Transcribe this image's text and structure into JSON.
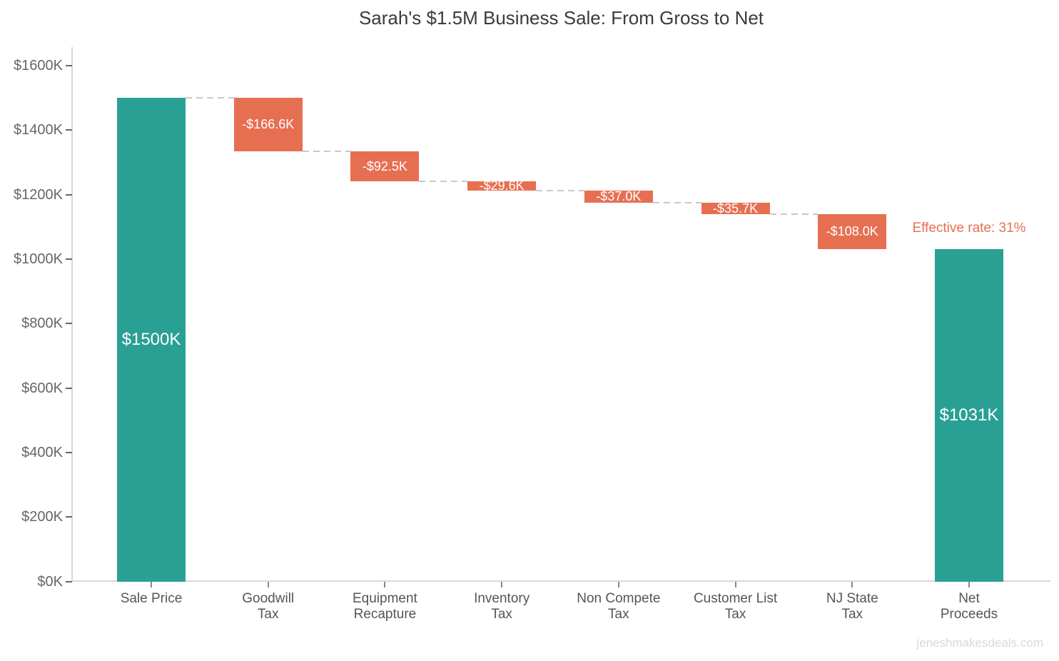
{
  "chart_data": {
    "type": "waterfall",
    "title": "Sarah's $1.5M Business Sale: From Gross to Net",
    "categories": [
      "Sale Price",
      "Goodwill Tax",
      "Equipment Recapture",
      "Inventory Tax",
      "Non Compete Tax",
      "Customer List Tax",
      "NJ State Tax",
      "Net Proceeds"
    ],
    "categories_lines": [
      [
        "Sale Price"
      ],
      [
        "Goodwill",
        "Tax"
      ],
      [
        "Equipment",
        "Recapture"
      ],
      [
        "Inventory",
        "Tax"
      ],
      [
        "Non Compete",
        "Tax"
      ],
      [
        "Customer List",
        "Tax"
      ],
      [
        "NJ State",
        "Tax"
      ],
      [
        "Net",
        "Proceeds"
      ]
    ],
    "values_k": [
      1500,
      -166.6,
      -92.5,
      -29.6,
      -37.0,
      -35.7,
      -108.0,
      1030.6
    ],
    "measures": [
      "absolute",
      "relative",
      "relative",
      "relative",
      "relative",
      "relative",
      "relative",
      "total"
    ],
    "bar_labels": [
      "$1500K",
      "-$166.6K",
      "-$92.5K",
      "-$29.6K",
      "-$37.0K",
      "-$35.7K",
      "-$108.0K",
      "$1031K"
    ],
    "y_axis": {
      "ticks": [
        "$1600K",
        "$1400K",
        "$1200K",
        "$1000K",
        "$800K",
        "$600K",
        "$400K",
        "$200K",
        "$0K"
      ],
      "min_k": 0,
      "max_k": 1600,
      "tick_step_k": 200
    },
    "grid": "off",
    "legend": "none",
    "annotation": "Effective rate: 31%",
    "watermark": "jeneshmakesdeals.com",
    "colors": {
      "positive_total_bar": "#2aa095",
      "negative_bar": "#e76f51",
      "connector": "#c9c9c9",
      "annotation_text": "#e76f51",
      "title_text": "#3b3b3b",
      "axis_line": "#d9d9d9",
      "tick_label_text": "#666666"
    }
  }
}
